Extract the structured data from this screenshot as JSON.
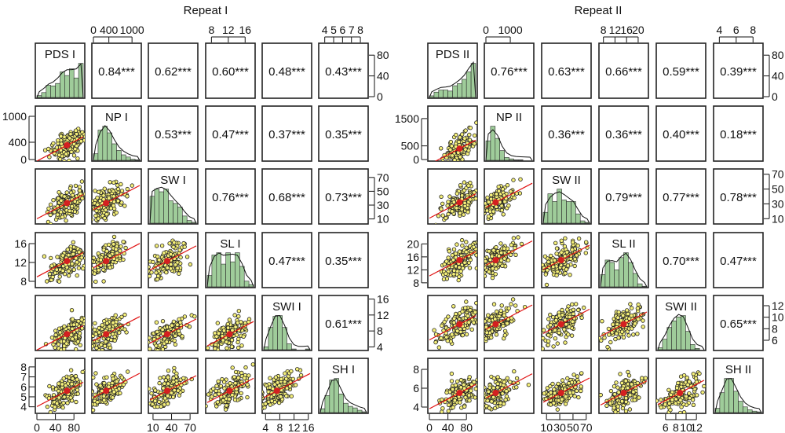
{
  "chart_data": [
    {
      "type": "scatter",
      "subtype": "pairs-matrix",
      "title": "Repeat I",
      "variables": [
        "PDS I",
        "NP I",
        "SW I",
        "SL I",
        "SWI I",
        "SH I"
      ],
      "correlations": [
        {
          "row": 0,
          "col": 1,
          "label": "0.84***"
        },
        {
          "row": 0,
          "col": 2,
          "label": "0.62***"
        },
        {
          "row": 0,
          "col": 3,
          "label": "0.60***"
        },
        {
          "row": 0,
          "col": 4,
          "label": "0.48***"
        },
        {
          "row": 0,
          "col": 5,
          "label": "0.43***"
        },
        {
          "row": 1,
          "col": 2,
          "label": "0.53***"
        },
        {
          "row": 1,
          "col": 3,
          "label": "0.47***"
        },
        {
          "row": 1,
          "col": 4,
          "label": "0.37***"
        },
        {
          "row": 1,
          "col": 5,
          "label": "0.35***"
        },
        {
          "row": 2,
          "col": 3,
          "label": "0.76***"
        },
        {
          "row": 2,
          "col": 4,
          "label": "0.68***"
        },
        {
          "row": 2,
          "col": 5,
          "label": "0.73***"
        },
        {
          "row": 3,
          "col": 4,
          "label": "0.47***"
        },
        {
          "row": 3,
          "col": 5,
          "label": "0.35***"
        },
        {
          "row": 4,
          "col": 5,
          "label": "0.61***"
        }
      ],
      "ranges": [
        [
          0,
          100
        ],
        [
          0,
          1200
        ],
        [
          5,
          80
        ],
        [
          7,
          18
        ],
        [
          3.5,
          16.5
        ],
        [
          3.5,
          8.7
        ]
      ],
      "means": [
        65,
        330,
        33,
        12.3,
        7.2,
        5.6
      ],
      "histograms": [
        [
          3,
          8,
          20,
          19,
          23,
          42,
          36,
          47,
          32,
          56
        ],
        [
          12,
          55,
          62,
          50,
          30,
          18,
          10,
          6,
          2,
          1
        ],
        [
          30,
          38,
          35,
          38,
          25,
          22,
          18,
          8,
          3,
          1
        ],
        [
          10,
          28,
          30,
          20,
          30,
          22,
          30,
          18,
          5,
          2
        ],
        [
          4,
          30,
          45,
          46,
          30,
          8,
          1,
          0,
          0,
          1
        ],
        [
          5,
          22,
          42,
          44,
          24,
          12,
          8,
          6,
          3,
          1
        ]
      ],
      "top_axes": [
        {
          "col": 1,
          "ticks": [
            "0",
            "400",
            "1000"
          ],
          "values": [
            0,
            400,
            1000
          ]
        },
        {
          "col": 3,
          "ticks": [
            "8",
            "12",
            "16"
          ],
          "values": [
            8,
            12,
            16
          ]
        },
        {
          "col": 5,
          "ticks": [
            "4",
            "5",
            "6",
            "7",
            "8"
          ],
          "values": [
            4,
            5,
            6,
            7,
            8
          ]
        }
      ],
      "bottom_axes": [
        {
          "col": 0,
          "ticks": [
            "0",
            "40",
            "80"
          ],
          "values": [
            0,
            40,
            80
          ]
        },
        {
          "col": 2,
          "ticks": [
            "10",
            "40",
            "70"
          ],
          "values": [
            10,
            40,
            70
          ]
        },
        {
          "col": 4,
          "ticks": [
            "4",
            "8",
            "12",
            "16"
          ],
          "values": [
            4,
            8,
            12,
            16
          ]
        }
      ],
      "left_axes": [
        {
          "row": 1,
          "ticks": [
            "0",
            "400",
            "1000"
          ],
          "values": [
            0,
            400,
            1000
          ]
        },
        {
          "row": 3,
          "ticks": [
            "8",
            "12",
            "16"
          ],
          "values": [
            8,
            12,
            16
          ]
        },
        {
          "row": 5,
          "ticks": [
            "4",
            "5",
            "6",
            "7",
            "8"
          ],
          "values": [
            4,
            5,
            6,
            7,
            8
          ]
        }
      ],
      "right_axes": [
        {
          "row": 0,
          "ticks": [
            "0",
            "40",
            "80"
          ],
          "values": [
            0,
            40,
            80
          ],
          "range": [
            0,
            100
          ]
        },
        {
          "row": 2,
          "ticks": [
            "10",
            "30",
            "50",
            "70"
          ],
          "values": [
            10,
            30,
            50,
            70
          ]
        },
        {
          "row": 4,
          "ticks": [
            "4",
            "8",
            "12",
            "16"
          ],
          "values": [
            4,
            8,
            12,
            16
          ]
        }
      ]
    },
    {
      "type": "scatter",
      "subtype": "pairs-matrix",
      "title": "Repeat II",
      "variables": [
        "PDS II",
        "NP II",
        "SW II",
        "SL II",
        "SWI II",
        "SH II"
      ],
      "correlations": [
        {
          "row": 0,
          "col": 1,
          "label": "0.76***"
        },
        {
          "row": 0,
          "col": 2,
          "label": "0.63***"
        },
        {
          "row": 0,
          "col": 3,
          "label": "0.66***"
        },
        {
          "row": 0,
          "col": 4,
          "label": "0.59***"
        },
        {
          "row": 0,
          "col": 5,
          "label": "0.39***"
        },
        {
          "row": 1,
          "col": 2,
          "label": "0.36***"
        },
        {
          "row": 1,
          "col": 3,
          "label": "0.36***"
        },
        {
          "row": 1,
          "col": 4,
          "label": "0.40***"
        },
        {
          "row": 1,
          "col": 5,
          "label": "0.18***"
        },
        {
          "row": 2,
          "col": 3,
          "label": "0.79***"
        },
        {
          "row": 2,
          "col": 4,
          "label": "0.77***"
        },
        {
          "row": 2,
          "col": 5,
          "label": "0.78***"
        },
        {
          "row": 3,
          "col": 4,
          "label": "0.70***"
        },
        {
          "row": 3,
          "col": 5,
          "label": "0.47***"
        },
        {
          "row": 4,
          "col": 5,
          "label": "0.65***"
        }
      ],
      "ranges": [
        [
          0,
          100
        ],
        [
          0,
          1900
        ],
        [
          5,
          75
        ],
        [
          7,
          23
        ],
        [
          4.5,
          13.5
        ],
        [
          3.5,
          9
        ]
      ],
      "means": [
        65,
        400,
        32,
        15,
        8.8,
        5.5
      ],
      "histograms": [
        [
          3,
          10,
          14,
          14,
          12,
          22,
          26,
          34,
          48,
          64
        ],
        [
          40,
          70,
          45,
          20,
          6,
          3,
          1,
          1,
          0,
          0
        ],
        [
          14,
          38,
          28,
          44,
          30,
          28,
          28,
          12,
          3,
          1
        ],
        [
          20,
          44,
          40,
          28,
          48,
          56,
          40,
          22,
          5,
          1
        ],
        [
          3,
          16,
          34,
          44,
          50,
          52,
          28,
          8,
          2,
          0
        ],
        [
          6,
          28,
          48,
          48,
          30,
          16,
          8,
          4,
          2,
          1
        ]
      ],
      "top_axes": [
        {
          "col": 1,
          "ticks": [
            "0",
            "1000"
          ],
          "values": [
            0,
            1000
          ]
        },
        {
          "col": 3,
          "ticks": [
            "8",
            "12",
            "16",
            "20"
          ],
          "values": [
            8,
            12,
            16,
            20
          ]
        },
        {
          "col": 5,
          "ticks": [
            "4",
            "6",
            "8"
          ],
          "values": [
            4,
            6,
            8
          ]
        }
      ],
      "bottom_axes": [
        {
          "col": 0,
          "ticks": [
            "0",
            "40",
            "80"
          ],
          "values": [
            0,
            40,
            80
          ]
        },
        {
          "col": 2,
          "ticks": [
            "10",
            "30",
            "50",
            "70"
          ],
          "values": [
            10,
            30,
            50,
            70
          ]
        },
        {
          "col": 4,
          "ticks": [
            "6",
            "8",
            "10",
            "12"
          ],
          "values": [
            6,
            8,
            10,
            12
          ]
        }
      ],
      "left_axes": [
        {
          "row": 1,
          "ticks": [
            "0",
            "500",
            "1500"
          ],
          "values": [
            0,
            500,
            1500
          ]
        },
        {
          "row": 3,
          "ticks": [
            "8",
            "12",
            "16",
            "20"
          ],
          "values": [
            8,
            12,
            16,
            20
          ]
        },
        {
          "row": 5,
          "ticks": [
            "4",
            "6",
            "8"
          ],
          "values": [
            4,
            6,
            8
          ]
        }
      ],
      "right_axes": [
        {
          "row": 0,
          "ticks": [
            "0",
            "40",
            "80"
          ],
          "values": [
            0,
            40,
            80
          ],
          "range": [
            0,
            100
          ]
        },
        {
          "row": 2,
          "ticks": [
            "10",
            "30",
            "50",
            "70"
          ],
          "values": [
            10,
            30,
            50,
            70
          ]
        },
        {
          "row": 4,
          "ticks": [
            "6",
            "8",
            "10",
            "12"
          ],
          "values": [
            6,
            8,
            10,
            12
          ]
        }
      ]
    }
  ],
  "colors": {
    "points": "#f5f07a",
    "fit_line": "#e01010",
    "mean_point": "#d42020",
    "histogram": "#9fcc9a"
  }
}
